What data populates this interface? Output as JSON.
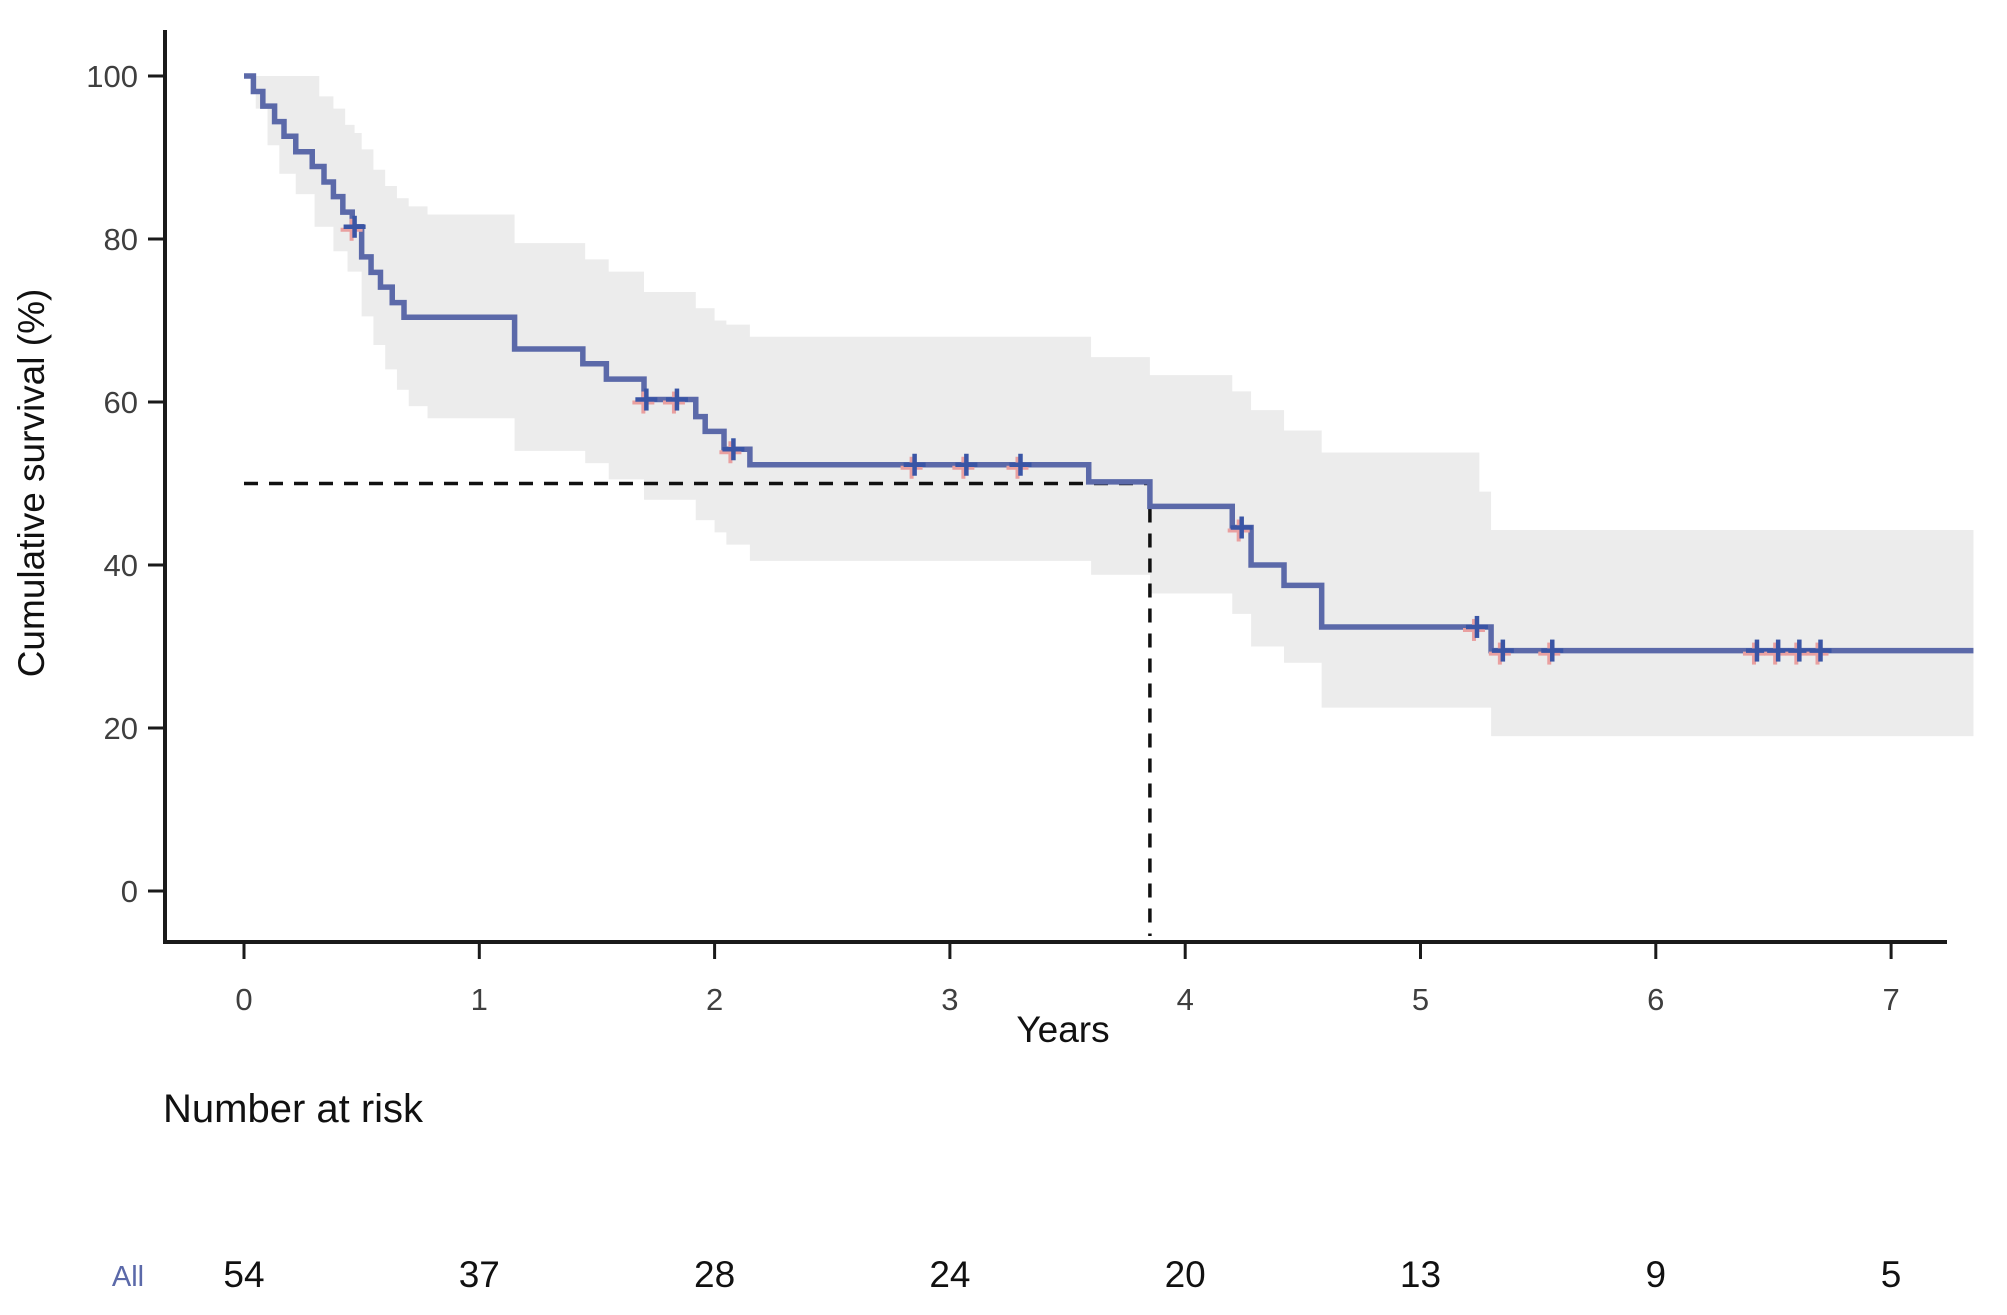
{
  "chart_data": {
    "type": "line",
    "subtype": "kaplan-meier-survival",
    "title": "",
    "xlabel": "Years",
    "ylabel": "Cumulative survival (%)",
    "x_ticks": [
      0,
      1,
      2,
      3,
      4,
      5,
      6,
      7
    ],
    "y_ticks": [
      0,
      20,
      40,
      60,
      80,
      100
    ],
    "xlim": [
      -0.34,
      7.45
    ],
    "ylim": [
      -7,
      106
    ],
    "grid": "off",
    "legend": "none",
    "x_end": 7.35,
    "survival_steps": [
      [
        0,
        100
      ],
      [
        0.04,
        98.1
      ],
      [
        0.08,
        96.3
      ],
      [
        0.13,
        94.4
      ],
      [
        0.17,
        92.6
      ],
      [
        0.22,
        90.7
      ],
      [
        0.29,
        88.9
      ],
      [
        0.34,
        87.0
      ],
      [
        0.38,
        85.2
      ],
      [
        0.42,
        83.3
      ],
      [
        0.46,
        81.5
      ],
      [
        0.5,
        77.8
      ],
      [
        0.54,
        75.9
      ],
      [
        0.58,
        74.1
      ],
      [
        0.63,
        72.2
      ],
      [
        0.68,
        70.4
      ],
      [
        1.15,
        66.5
      ],
      [
        1.44,
        64.7
      ],
      [
        1.54,
        62.8
      ],
      [
        1.7,
        60.3
      ],
      [
        1.92,
        58.2
      ],
      [
        1.96,
        56.4
      ],
      [
        2.04,
        54.2
      ],
      [
        2.15,
        52.3
      ],
      [
        3.59,
        50.2
      ],
      [
        3.85,
        47.2
      ],
      [
        4.2,
        44.6
      ],
      [
        4.28,
        40.0
      ],
      [
        4.42,
        37.5
      ],
      [
        4.58,
        32.4
      ],
      [
        5.3,
        29.5
      ]
    ],
    "censor_marks": [
      [
        0.47,
        81.5
      ],
      [
        1.71,
        60.3
      ],
      [
        1.84,
        60.3
      ],
      [
        2.08,
        54.2
      ],
      [
        2.85,
        52.3
      ],
      [
        3.07,
        52.3
      ],
      [
        3.3,
        52.3
      ],
      [
        4.24,
        44.6
      ],
      [
        5.24,
        32.4
      ],
      [
        5.35,
        29.5
      ],
      [
        5.56,
        29.5
      ],
      [
        6.43,
        29.5
      ],
      [
        6.52,
        29.5
      ],
      [
        6.61,
        29.5
      ],
      [
        6.7,
        29.5
      ]
    ],
    "ci_upper": [
      [
        0,
        100
      ],
      [
        0.32,
        97.5
      ],
      [
        0.38,
        96.0
      ],
      [
        0.43,
        94.0
      ],
      [
        0.47,
        93.0
      ],
      [
        0.5,
        91.0
      ],
      [
        0.55,
        88.5
      ],
      [
        0.6,
        86.5
      ],
      [
        0.65,
        85.0
      ],
      [
        0.7,
        84.0
      ],
      [
        0.78,
        83.0
      ],
      [
        1.15,
        79.5
      ],
      [
        1.45,
        77.5
      ],
      [
        1.55,
        76.0
      ],
      [
        1.7,
        73.5
      ],
      [
        1.92,
        71.5
      ],
      [
        2.0,
        70.0
      ],
      [
        2.05,
        69.5
      ],
      [
        2.15,
        68.0
      ],
      [
        3.6,
        65.5
      ],
      [
        3.85,
        63.3
      ],
      [
        4.2,
        61.3
      ],
      [
        4.28,
        59.0
      ],
      [
        4.42,
        56.5
      ],
      [
        4.58,
        53.8
      ],
      [
        5.25,
        49.0
      ],
      [
        5.3,
        44.3
      ]
    ],
    "ci_lower": [
      [
        0,
        100
      ],
      [
        0.05,
        96.0
      ],
      [
        0.1,
        91.5
      ],
      [
        0.15,
        88.0
      ],
      [
        0.22,
        85.5
      ],
      [
        0.3,
        81.5
      ],
      [
        0.38,
        78.5
      ],
      [
        0.44,
        76.0
      ],
      [
        0.5,
        70.5
      ],
      [
        0.55,
        67.0
      ],
      [
        0.6,
        64.0
      ],
      [
        0.65,
        61.5
      ],
      [
        0.7,
        59.5
      ],
      [
        0.78,
        58.0
      ],
      [
        1.15,
        54.0
      ],
      [
        1.45,
        52.5
      ],
      [
        1.55,
        50.5
      ],
      [
        1.7,
        48.0
      ],
      [
        1.92,
        45.5
      ],
      [
        2.0,
        44.0
      ],
      [
        2.05,
        42.5
      ],
      [
        2.15,
        40.5
      ],
      [
        3.6,
        38.8
      ],
      [
        3.85,
        36.5
      ],
      [
        4.2,
        34.0
      ],
      [
        4.28,
        30.0
      ],
      [
        4.42,
        28.0
      ],
      [
        4.58,
        22.5
      ],
      [
        5.3,
        19.0
      ]
    ],
    "median_annotation": {
      "survival_pct": 50,
      "time_years": 3.85
    },
    "colors": {
      "curve": "#5b69a9",
      "ci_band": "#ececec",
      "censor": "#3a55a5",
      "censor_fringe": "#e9a0a0",
      "dashed_line": "#111111",
      "axis": "#1a1a1a",
      "tick_label": "#3f3f3f",
      "text": "#111111",
      "risk_row_label": "#5b69a9"
    }
  },
  "risk_table": {
    "title": "Number at risk",
    "row_label": "All",
    "times": [
      0,
      1,
      2,
      3,
      4,
      5,
      6,
      7
    ],
    "values": [
      54,
      37,
      28,
      24,
      20,
      13,
      9,
      5
    ]
  }
}
